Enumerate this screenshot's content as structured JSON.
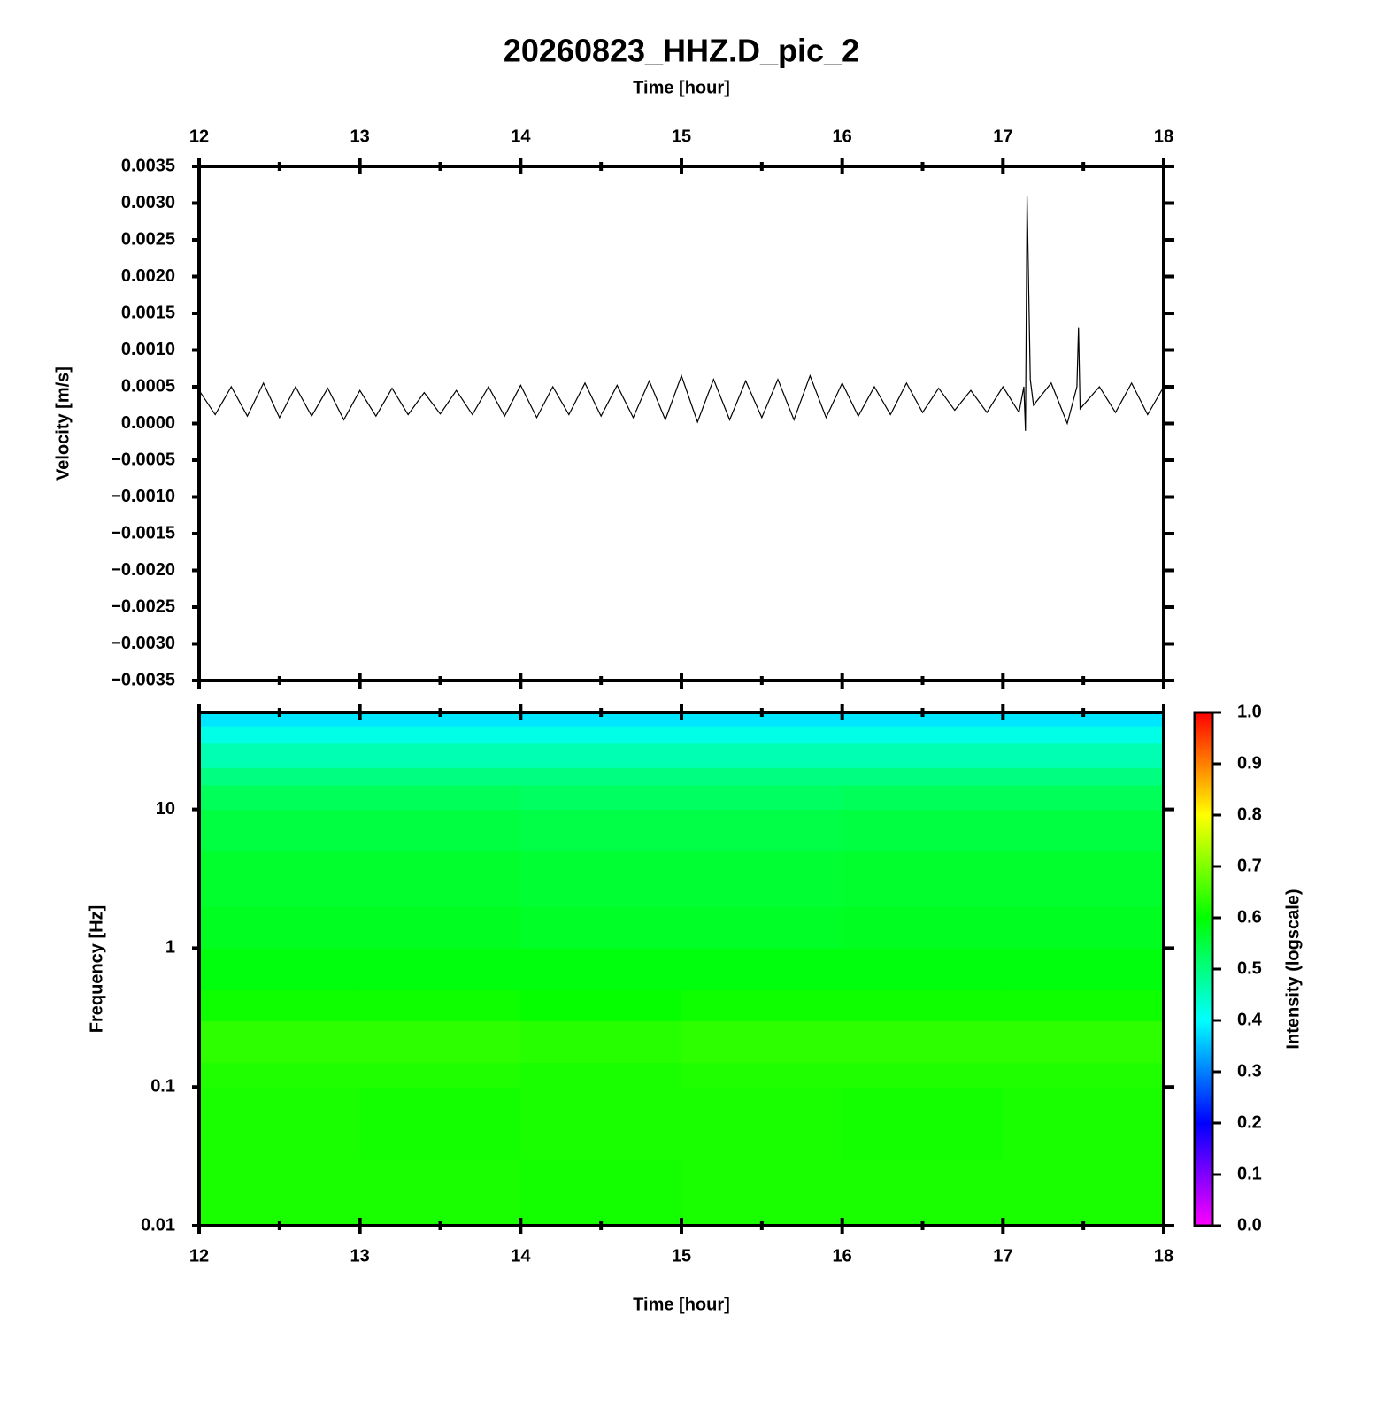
{
  "chart_data": [
    {
      "type": "line",
      "title": "20260823_HHZ.D_pic_2",
      "xlabel": "Time [hour]",
      "ylabel": "Velocity [m/s]",
      "xaxis": "top",
      "xlim": [
        12,
        18
      ],
      "xticks": [
        12,
        13,
        14,
        15,
        16,
        17,
        18
      ],
      "xminorticks": [
        12.5,
        13.5,
        14.5,
        15.5,
        16.5,
        17.5
      ],
      "ylim": [
        -0.0035,
        0.0035
      ],
      "yticks": [
        {
          "value": -0.0035,
          "label": "−0.0035"
        },
        {
          "value": -0.003,
          "label": "−0.0030"
        },
        {
          "value": -0.0025,
          "label": "−0.0025"
        },
        {
          "value": -0.002,
          "label": "−0.0020"
        },
        {
          "value": -0.0015,
          "label": "−0.0015"
        },
        {
          "value": -0.001,
          "label": "−0.0010"
        },
        {
          "value": -0.0005,
          "label": "−0.0005"
        },
        {
          "value": 0,
          "label": "0.0000"
        },
        {
          "value": 0.0005,
          "label": "0.0005"
        },
        {
          "value": 0.001,
          "label": "0.0010"
        },
        {
          "value": 0.0015,
          "label": "0.0015"
        },
        {
          "value": 0.002,
          "label": "0.0020"
        },
        {
          "value": 0.0025,
          "label": "0.0025"
        },
        {
          "value": 0.003,
          "label": "0.0030"
        },
        {
          "value": 0.0035,
          "label": "0.0035"
        }
      ],
      "x": [
        12.0,
        12.1,
        12.2,
        12.3,
        12.4,
        12.5,
        12.6,
        12.7,
        12.8,
        12.9,
        13.0,
        13.1,
        13.2,
        13.3,
        13.4,
        13.5,
        13.6,
        13.7,
        13.8,
        13.9,
        14.0,
        14.1,
        14.2,
        14.3,
        14.4,
        14.5,
        14.6,
        14.7,
        14.8,
        14.9,
        15.0,
        15.1,
        15.2,
        15.3,
        15.4,
        15.5,
        15.6,
        15.7,
        15.8,
        15.9,
        16.0,
        16.1,
        16.2,
        16.3,
        16.4,
        16.5,
        16.6,
        16.7,
        16.8,
        16.9,
        17.0,
        17.1,
        17.13,
        17.14,
        17.15,
        17.17,
        17.19,
        17.3,
        17.4,
        17.46,
        17.47,
        17.48,
        17.6,
        17.7,
        17.8,
        17.9,
        18.0
      ],
      "series": [
        {
          "color": "#000000",
          "values": [
            0.00045,
            0.00012,
            0.0005,
            0.0001,
            0.00055,
            8e-05,
            0.0005,
            0.0001,
            0.00048,
            5e-05,
            0.00045,
            0.0001,
            0.00048,
            0.00012,
            0.00042,
            0.00013,
            0.00045,
            0.00012,
            0.0005,
            0.0001,
            0.00052,
            8e-05,
            0.0005,
            0.00012,
            0.00055,
            0.0001,
            0.00052,
            8e-05,
            0.00058,
            5e-05,
            0.00065,
            2e-05,
            0.0006,
            5e-05,
            0.00058,
            8e-05,
            0.0006,
            5e-05,
            0.00065,
            8e-05,
            0.00055,
            0.0001,
            0.0005,
            0.00012,
            0.00055,
            0.00015,
            0.00048,
            0.00018,
            0.00045,
            0.00015,
            0.0005,
            0.00015,
            0.0005,
            -0.0001,
            0.0031,
            0.0006,
            0.00025,
            0.00055,
            0.0,
            0.0005,
            0.0013,
            0.0002,
            0.0005,
            0.00015,
            0.00055,
            0.00012,
            0.0005
          ]
        }
      ]
    },
    {
      "type": "heatmap",
      "xlabel": "Time [hour]",
      "ylabel": "Frequency [Hz]",
      "xaxis": "bottom",
      "xlim": [
        12,
        18
      ],
      "xticks": [
        12,
        13,
        14,
        15,
        16,
        17,
        18
      ],
      "xminorticks": [
        12.5,
        13.5,
        14.5,
        15.5,
        16.5,
        17.5
      ],
      "ylim": [
        0.01,
        50
      ],
      "ylog": true,
      "yticks": [
        0.01,
        0.1,
        1,
        10
      ],
      "xbins": [
        12,
        13,
        14,
        15,
        16,
        17,
        18
      ],
      "ybins": [
        0.01,
        0.03,
        0.1,
        0.15,
        0.3,
        0.5,
        1,
        2,
        5,
        10,
        15,
        20,
        30,
        40,
        50
      ],
      "values": [
        [
          0.62,
          0.62,
          0.615,
          0.62,
          0.62,
          0.62
        ],
        [
          0.62,
          0.615,
          0.62,
          0.62,
          0.615,
          0.62
        ],
        [
          0.625,
          0.625,
          0.62,
          0.625,
          0.625,
          0.625
        ],
        [
          0.635,
          0.635,
          0.63,
          0.635,
          0.635,
          0.635
        ],
        [
          0.61,
          0.61,
          0.605,
          0.61,
          0.61,
          0.61
        ],
        [
          0.59,
          0.59,
          0.59,
          0.59,
          0.59,
          0.59
        ],
        [
          0.575,
          0.575,
          0.57,
          0.57,
          0.575,
          0.575
        ],
        [
          0.565,
          0.565,
          0.56,
          0.56,
          0.565,
          0.565
        ],
        [
          0.55,
          0.55,
          0.545,
          0.545,
          0.55,
          0.55
        ],
        [
          0.53,
          0.53,
          0.525,
          0.525,
          0.53,
          0.53
        ],
        [
          0.5,
          0.5,
          0.5,
          0.5,
          0.5,
          0.5
        ],
        [
          0.46,
          0.46,
          0.46,
          0.46,
          0.46,
          0.46
        ],
        [
          0.42,
          0.42,
          0.42,
          0.42,
          0.42,
          0.42
        ],
        [
          0.38,
          0.38,
          0.38,
          0.38,
          0.38,
          0.38
        ]
      ],
      "colormap": "rainbow",
      "colorbar": {
        "label": "Intensity (logscale)",
        "lim": [
          0,
          1
        ],
        "ticks": [
          {
            "value": 0,
            "label": "0.0"
          },
          0.1,
          0.2,
          0.3,
          0.4,
          0.5,
          0.6,
          0.7,
          0.8,
          0.9,
          {
            "value": 1,
            "label": "1.0"
          }
        ]
      }
    }
  ]
}
